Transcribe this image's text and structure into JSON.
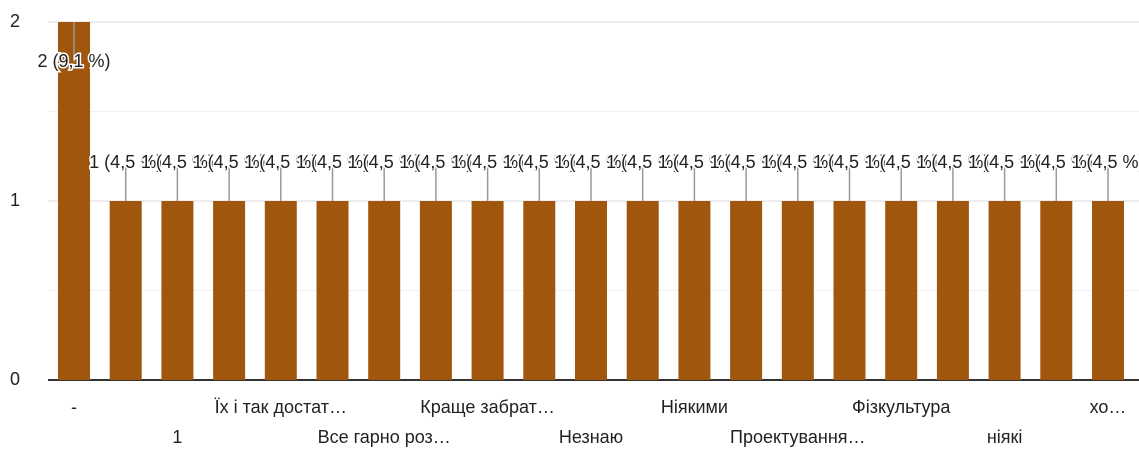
{
  "chart_data": {
    "type": "bar",
    "categories": [
      "-",
      null,
      "1",
      null,
      "Їх і так достат…",
      null,
      "Все гарно роз…",
      null,
      "Краще забрат…",
      null,
      "Незнаю",
      null,
      "Ніякими",
      null,
      "Проектування…",
      null,
      "Фізкультура",
      null,
      "ніякі",
      null,
      "хо…"
    ],
    "values": [
      2,
      1,
      1,
      1,
      1,
      1,
      1,
      1,
      1,
      1,
      1,
      1,
      1,
      1,
      1,
      1,
      1,
      1,
      1,
      1,
      1
    ],
    "value_labels": [
      "2 (9,1 %)",
      "1 (4,5 %)",
      "1 (4,5 %)",
      "1 (4,5 %)",
      "1 (4,5 %)",
      "1 (4,5 %)",
      "1 (4,5 %)",
      "1 (4,5 %)",
      "1 (4,5 %)",
      "1 (4,5 %)",
      "1 (4,5 %)",
      "1 (4,5 %)",
      "1 (4,5 %)",
      "1 (4,5 %)",
      "1 (4,5 %)",
      "1 (4,5 %)",
      "1 (4,5 %)",
      "1 (4,5 %)",
      "1 (4,5 %)",
      "1 (4,5 %)",
      "1 (4,5 %)"
    ],
    "color": "#a1560e",
    "ylim": [
      0,
      2
    ],
    "yticks": [
      0,
      1,
      2
    ],
    "minor_gridlines": [
      0.5,
      1.5
    ],
    "grid": true
  }
}
